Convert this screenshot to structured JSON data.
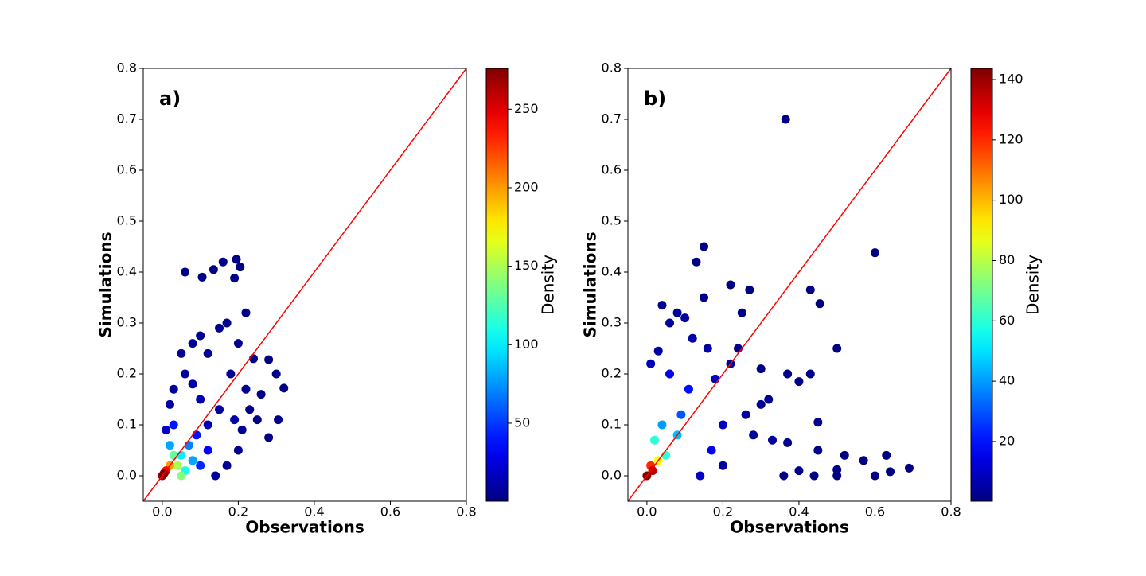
{
  "chart_data": [
    {
      "type": "scatter",
      "panel_label": "a)",
      "xlabel": "Observations",
      "ylabel": "Simulations",
      "xlim": [
        -0.05,
        0.8
      ],
      "ylim": [
        -0.05,
        0.8
      ],
      "xticks": [
        {
          "value": 0,
          "label": "0.0"
        },
        0.2,
        0.4,
        0.6,
        0.8
      ],
      "yticks": [
        {
          "value": 0,
          "label": "0.0"
        },
        0.1,
        0.2,
        0.3,
        0.4,
        0.5,
        0.6,
        0.7,
        0.8
      ],
      "reference_line_color": "red",
      "colormap": "jet",
      "colorbar": {
        "label": "Density",
        "lim": [
          0.3,
          276
        ],
        "ticks": [
          50,
          100,
          150,
          200,
          250
        ]
      },
      "x": [
        0.06,
        0.105,
        0.135,
        0.16,
        0.195,
        0.19,
        0.205,
        0.22,
        0.28,
        0.3,
        0.32,
        0.305,
        0.28,
        0.25,
        0.24,
        0.2,
        0.17,
        0.15,
        0.1,
        0.08,
        0.05,
        0.06,
        0.03,
        0.02,
        0.12,
        0.18,
        0.22,
        0.2,
        0.17,
        0.14,
        0.12,
        0.15,
        0.1,
        0.23,
        0.21,
        0.26,
        0.19,
        0.08,
        0.01,
        0.03,
        0.09,
        0.12,
        0.1,
        0.07,
        0.05,
        0.08,
        0.06,
        0.02,
        0.04,
        0.03,
        0.05,
        0.02,
        0.01,
        0.0,
        0.005
      ],
      "y": [
        0.4,
        0.39,
        0.405,
        0.42,
        0.425,
        0.388,
        0.41,
        0.32,
        0.228,
        0.2,
        0.172,
        0.11,
        0.075,
        0.11,
        0.23,
        0.26,
        0.3,
        0.29,
        0.275,
        0.26,
        0.24,
        0.2,
        0.17,
        0.14,
        0.24,
        0.2,
        0.17,
        0.05,
        0.02,
        0.0,
        0.1,
        0.13,
        0.15,
        0.13,
        0.09,
        0.16,
        0.11,
        0.18,
        0.09,
        0.1,
        0.08,
        0.05,
        0.02,
        0.06,
        0.04,
        0.03,
        0.01,
        0.06,
        0.02,
        0.04,
        0.0,
        0.02,
        0.01,
        0.0,
        0.005
      ],
      "density": [
        2,
        2,
        2,
        2,
        2,
        2,
        2,
        3,
        2,
        2,
        2,
        2,
        2,
        2,
        3,
        5,
        5,
        5,
        5,
        6,
        5,
        8,
        8,
        10,
        8,
        6,
        5,
        5,
        5,
        8,
        15,
        10,
        15,
        4,
        6,
        3,
        10,
        12,
        20,
        40,
        40,
        35,
        45,
        70,
        100,
        80,
        110,
        80,
        150,
        130,
        140,
        200,
        240,
        270,
        275
      ]
    },
    {
      "type": "scatter",
      "panel_label": "b)",
      "xlabel": "Observations",
      "ylabel": "Simulations",
      "xlim": [
        -0.05,
        0.8
      ],
      "ylim": [
        -0.05,
        0.8
      ],
      "xticks": [
        {
          "value": 0,
          "label": "0.0"
        },
        0.2,
        0.4,
        0.6,
        0.8
      ],
      "yticks": [
        {
          "value": 0,
          "label": "0.0"
        },
        0.1,
        0.2,
        0.3,
        0.4,
        0.5,
        0.6,
        0.7,
        0.8
      ],
      "reference_line_color": "red",
      "colormap": "jet",
      "colorbar": {
        "label": "Density",
        "lim": [
          0.2,
          143.7
        ],
        "ticks": [
          20,
          40,
          60,
          80,
          100,
          120,
          140
        ]
      },
      "x": [
        0.365,
        0.6,
        0.15,
        0.13,
        0.15,
        0.22,
        0.25,
        0.27,
        0.43,
        0.455,
        0.5,
        0.4,
        0.37,
        0.3,
        0.32,
        0.45,
        0.43,
        0.37,
        0.36,
        0.44,
        0.5,
        0.52,
        0.57,
        0.6,
        0.63,
        0.64,
        0.69,
        0.5,
        0.45,
        0.4,
        0.33,
        0.28,
        0.26,
        0.22,
        0.2,
        0.04,
        0.06,
        0.08,
        0.1,
        0.03,
        0.01,
        0.12,
        0.16,
        0.18,
        0.24,
        0.3,
        0.2,
        0.17,
        0.14,
        0.11,
        0.09,
        0.06,
        0.08,
        0.04,
        0.05,
        0.02,
        0.03,
        0.01,
        0.015,
        0.0
      ],
      "y": [
        0.7,
        0.438,
        0.45,
        0.42,
        0.35,
        0.375,
        0.32,
        0.365,
        0.365,
        0.338,
        0.25,
        0.185,
        0.2,
        0.21,
        0.15,
        0.105,
        0.2,
        0.065,
        0.0,
        0.0,
        0.0,
        0.04,
        0.03,
        0.0,
        0.04,
        0.008,
        0.015,
        0.012,
        0.05,
        0.01,
        0.07,
        0.08,
        0.12,
        0.22,
        0.02,
        0.335,
        0.3,
        0.32,
        0.31,
        0.245,
        0.22,
        0.27,
        0.25,
        0.19,
        0.25,
        0.14,
        0.1,
        0.05,
        0.0,
        0.17,
        0.12,
        0.2,
        0.08,
        0.1,
        0.04,
        0.07,
        0.03,
        0.02,
        0.01,
        0.0
      ],
      "density": [
        1,
        1,
        1,
        1,
        2,
        1,
        2,
        1,
        1,
        1,
        1,
        2,
        2,
        2,
        3,
        2,
        1,
        2,
        2,
        1,
        1,
        1,
        1,
        1,
        1,
        1,
        1,
        1,
        2,
        2,
        4,
        4,
        5,
        3,
        5,
        3,
        4,
        4,
        4,
        6,
        8,
        6,
        6,
        8,
        2,
        3,
        10,
        15,
        10,
        20,
        30,
        15,
        45,
        40,
        60,
        60,
        90,
        120,
        135,
        143
      ]
    }
  ]
}
